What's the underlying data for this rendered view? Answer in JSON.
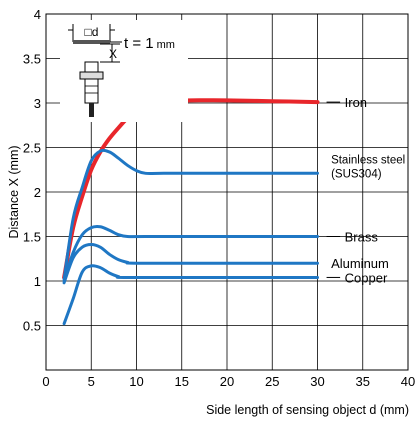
{
  "chart_data": {
    "type": "line",
    "xlabel": "Side length of sensing object d (mm)",
    "ylabel": "Distance X (mm)",
    "xlim": [
      0,
      40
    ],
    "ylim": [
      0,
      4
    ],
    "xticks": [
      "0",
      "5",
      "10",
      "15",
      "20",
      "25",
      "30",
      "35",
      "40"
    ],
    "yticks": [
      "0.5",
      "1",
      "1.5",
      "2",
      "2.5",
      "3",
      "3.5",
      "4"
    ],
    "grid": true,
    "series": [
      {
        "name": "Iron",
        "color": "#e8262b",
        "points": [
          [
            2,
            1.04
          ],
          [
            3,
            1.6
          ],
          [
            4,
            1.95
          ],
          [
            5,
            2.25
          ],
          [
            6,
            2.45
          ],
          [
            7,
            2.6
          ],
          [
            8,
            2.72
          ],
          [
            9,
            2.83
          ],
          [
            10,
            2.9
          ],
          [
            11,
            2.96
          ],
          [
            12,
            3.01
          ],
          [
            13,
            3.05
          ],
          [
            14,
            3.06
          ],
          [
            14.7,
            3.03
          ],
          [
            16,
            3.03
          ],
          [
            20,
            3.03
          ],
          [
            25,
            3.02
          ],
          [
            30,
            3.01
          ]
        ]
      },
      {
        "name": "Stainless steel",
        "label_line2": "(SUS304)",
        "color": "#1f77c4",
        "points": [
          [
            2,
            1.02
          ],
          [
            3,
            1.7
          ],
          [
            4,
            2.05
          ],
          [
            5,
            2.35
          ],
          [
            6,
            2.46
          ],
          [
            7,
            2.45
          ],
          [
            8,
            2.38
          ],
          [
            9,
            2.3
          ],
          [
            10,
            2.24
          ],
          [
            11,
            2.21
          ],
          [
            13,
            2.21
          ],
          [
            20,
            2.21
          ],
          [
            30,
            2.21
          ]
        ]
      },
      {
        "name": "Brass",
        "color": "#1f77c4",
        "points": [
          [
            2,
            1.0
          ],
          [
            3,
            1.32
          ],
          [
            4,
            1.52
          ],
          [
            5,
            1.6
          ],
          [
            6,
            1.61
          ],
          [
            7,
            1.57
          ],
          [
            8,
            1.52
          ],
          [
            9,
            1.5
          ],
          [
            11,
            1.5
          ],
          [
            20,
            1.5
          ],
          [
            30,
            1.5
          ]
        ]
      },
      {
        "name": "Aluminum",
        "color": "#1f77c4",
        "points": [
          [
            2,
            0.98
          ],
          [
            3,
            1.26
          ],
          [
            4,
            1.38
          ],
          [
            5,
            1.41
          ],
          [
            6,
            1.38
          ],
          [
            7,
            1.3
          ],
          [
            8,
            1.24
          ],
          [
            9,
            1.21
          ],
          [
            10,
            1.2
          ],
          [
            20,
            1.2
          ],
          [
            30,
            1.2
          ]
        ]
      },
      {
        "name": "Copper",
        "color": "#1f77c4",
        "points": [
          [
            2,
            0.52
          ],
          [
            3,
            0.8
          ],
          [
            4,
            1.1
          ],
          [
            5,
            1.17
          ],
          [
            6,
            1.15
          ],
          [
            7,
            1.09
          ],
          [
            8,
            1.05
          ],
          [
            9,
            1.04
          ],
          [
            20,
            1.04
          ],
          [
            30,
            1.04
          ]
        ]
      }
    ],
    "annotations": {
      "inset_dim_d": "□d",
      "inset_dim_x": "X",
      "inset_thickness": "t = 1",
      "inset_thickness_unit": "mm"
    }
  }
}
